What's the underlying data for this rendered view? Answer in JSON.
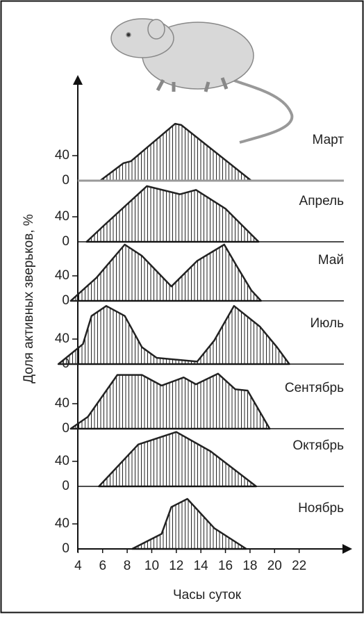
{
  "chart_data": [
    {
      "type": "area",
      "label": "Март",
      "color": "#222",
      "ylabel": "Доля активных зверьков, %",
      "xlim": [
        2,
        24
      ],
      "ylim": [
        0,
        100
      ],
      "yticks": [
        0,
        40
      ],
      "x": [
        5.8,
        7.7,
        8.3,
        11.9,
        12.4,
        18.1
      ],
      "values": [
        0,
        28,
        31,
        91,
        89,
        0
      ]
    },
    {
      "type": "area",
      "label": "Апрель",
      "color": "#222",
      "xlim": [
        2,
        24
      ],
      "ylim": [
        0,
        100
      ],
      "yticks": [
        0,
        40
      ],
      "x": [
        4.7,
        6.1,
        9.6,
        12.3,
        13.6,
        16,
        18.7
      ],
      "values": [
        0,
        26,
        89,
        76,
        83,
        53,
        0
      ]
    },
    {
      "type": "area",
      "label": "Май",
      "color": "#222",
      "xlim": [
        2,
        24
      ],
      "ylim": [
        0,
        100
      ],
      "yticks": [
        0,
        40
      ],
      "x": [
        3.4,
        5.5,
        7.8,
        9.2,
        11.6,
        13.7,
        15.9,
        17,
        18.1,
        18.9
      ],
      "values": [
        0,
        37,
        90,
        72,
        23,
        64,
        90,
        53,
        17,
        0
      ]
    },
    {
      "type": "area",
      "label": "Июль",
      "color": "#222",
      "xlim": [
        2,
        24
      ],
      "ylim": [
        0,
        100
      ],
      "yticks": [
        0,
        40
      ],
      "x": [
        2.4,
        4.4,
        5.1,
        6.3,
        7.8,
        9.2,
        10.4,
        13.7,
        15.1,
        16.7,
        18.8,
        20.2,
        21.2
      ],
      "values": [
        0,
        32,
        77,
        93,
        77,
        27,
        10,
        4,
        38,
        93,
        60,
        27,
        0
      ]
    },
    {
      "type": "area",
      "label": "Сентябрь",
      "color": "#222",
      "xlim": [
        2,
        24
      ],
      "ylim": [
        0,
        100
      ],
      "yticks": [
        0,
        40
      ],
      "x": [
        3.4,
        4.8,
        7.2,
        9.2,
        10.8,
        12.6,
        13.6,
        15.4,
        16.8,
        17.8,
        19.6
      ],
      "values": [
        0,
        19,
        86,
        86,
        69,
        82,
        71,
        88,
        63,
        61,
        0
      ]
    },
    {
      "type": "area",
      "label": "Октябрь",
      "color": "#222",
      "xlim": [
        2,
        24
      ],
      "ylim": [
        0,
        100
      ],
      "yticks": [
        0,
        40
      ],
      "x": [
        5.7,
        8.9,
        12,
        14.8,
        18.5
      ],
      "values": [
        0,
        67,
        87,
        56,
        0
      ]
    },
    {
      "type": "area",
      "label": "Ноябрь",
      "color": "#222",
      "xlabel": "Часы суток",
      "xlim": [
        2,
        24
      ],
      "ylim": [
        0,
        100
      ],
      "yticks": [
        0,
        40
      ],
      "xticks": [
        4,
        6,
        8,
        10,
        12,
        14,
        16,
        18,
        20,
        22
      ],
      "x": [
        8.4,
        10.8,
        11.6,
        12.9,
        15.1,
        17.7
      ],
      "values": [
        0,
        24,
        67,
        80,
        33,
        0
      ]
    }
  ]
}
